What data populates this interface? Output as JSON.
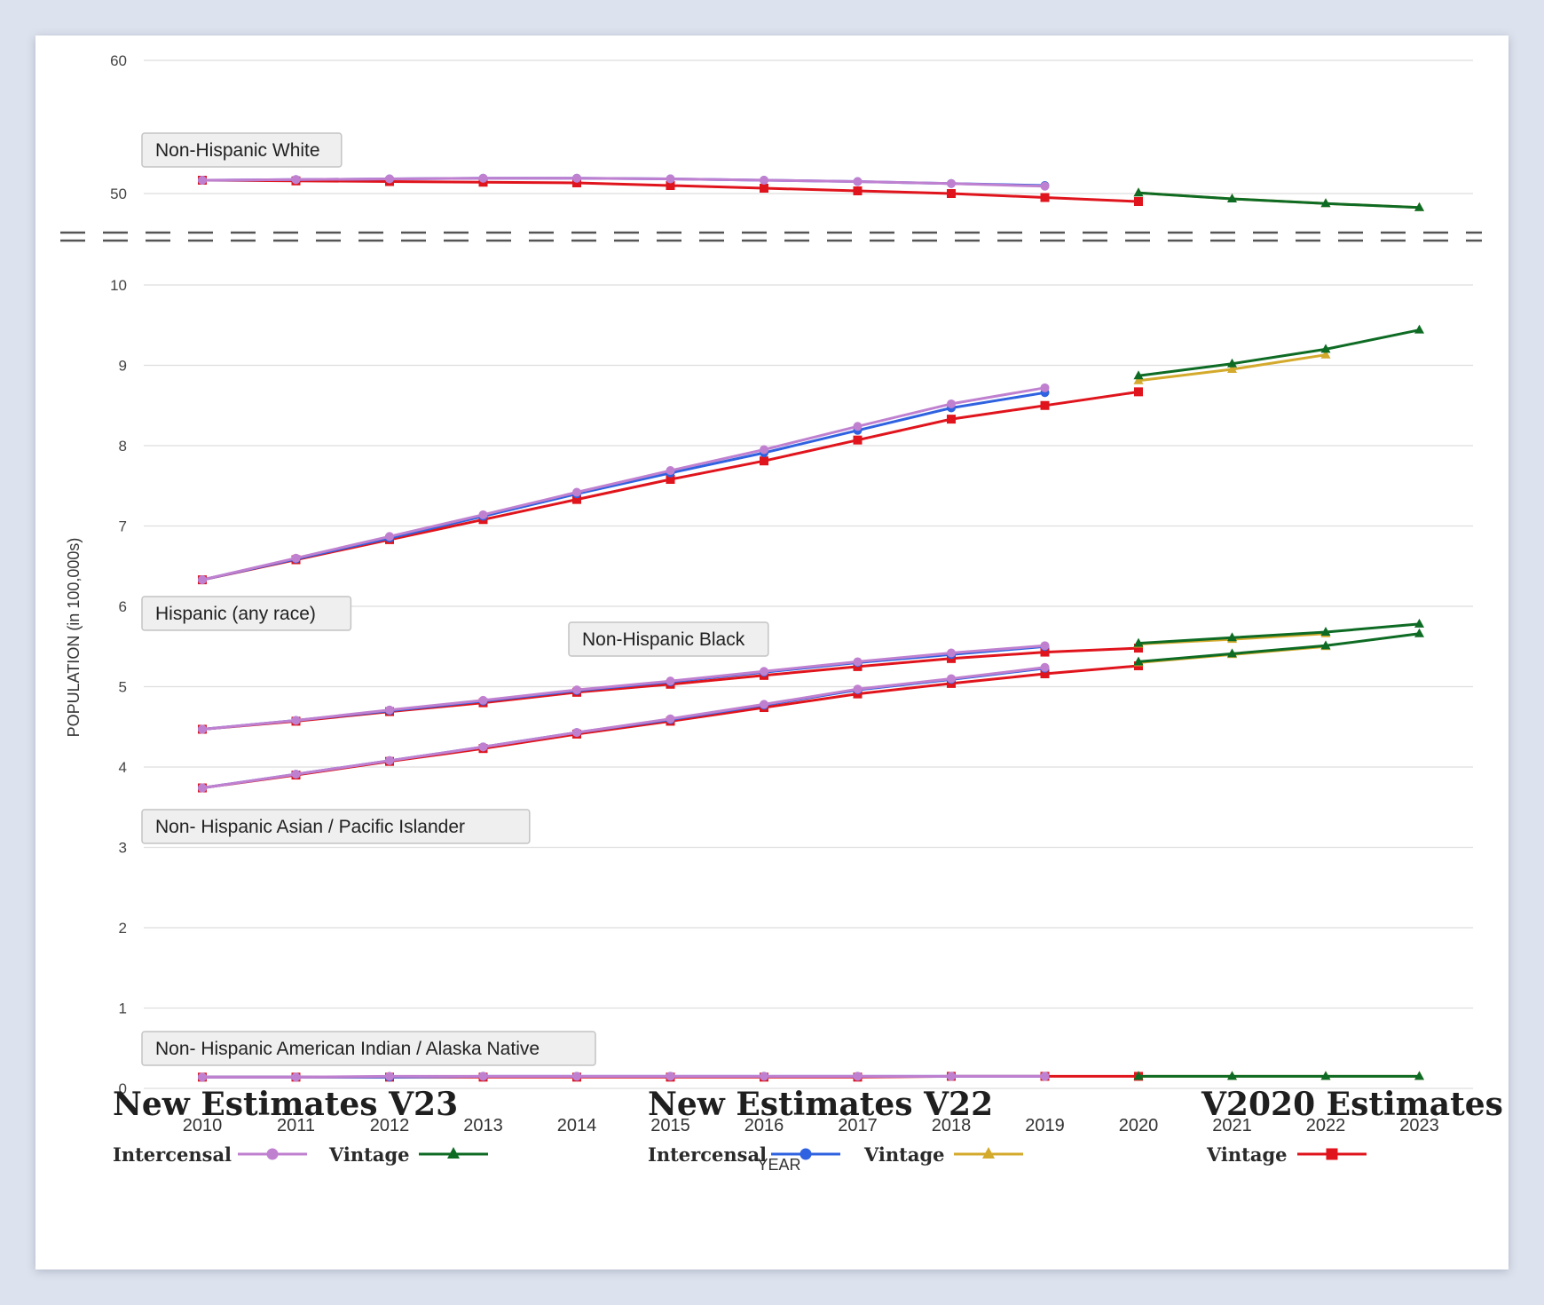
{
  "chart_data": {
    "type": "line",
    "ylabel": "POPULATION (in 100,000s)",
    "xlabel": "YEAR",
    "x": [
      2010,
      2011,
      2012,
      2013,
      2014,
      2015,
      2016,
      2017,
      2018,
      2019,
      2020,
      2021,
      2022,
      2023
    ],
    "x_tick_labels": [
      "2010",
      "2011",
      "2012",
      "2013",
      "2014",
      "2015",
      "2016",
      "2017",
      "2018",
      "2019",
      "2020",
      "2021",
      "2022",
      "2023"
    ],
    "y_ticks_lower": [
      "0",
      "1",
      "2",
      "3",
      "4",
      "5",
      "6",
      "7",
      "8",
      "9",
      "10"
    ],
    "y_ticks_upper": [
      "50",
      "60"
    ],
    "ylim_lower": [
      0,
      10
    ],
    "ylim_upper": [
      48.3,
      60
    ],
    "axis_break": "between 10 and 50",
    "grid": true,
    "group_labels": [
      {
        "text": "Non-Hispanic White"
      },
      {
        "text": "Hispanic (any race)"
      },
      {
        "text": "Non-Hispanic Black"
      },
      {
        "text": "Non- Hispanic Asian / Pacific Islander"
      },
      {
        "text": "Non- Hispanic American Indian / Alaska Native"
      }
    ],
    "series_styles": {
      "v23_intercensal": {
        "color": "#c080d0",
        "marker": "circle"
      },
      "v23_vintage": {
        "color": "#0e6b24",
        "marker": "triangle"
      },
      "v22_intercensal": {
        "color": "#2f62e0",
        "marker": "circle"
      },
      "v22_vintage": {
        "color": "#d4aa2c",
        "marker": "triangle"
      },
      "v2020_vintage": {
        "color": "#e0141c",
        "marker": "square"
      }
    },
    "groups": [
      {
        "group": "Non-Hispanic White",
        "panel": "upper",
        "series": [
          {
            "style": "v2020_vintage",
            "x": [
              2010,
              2011,
              2012,
              2013,
              2014,
              2015,
              2016,
              2017,
              2018,
              2019,
              2020
            ],
            "values": [
              51.0,
              50.95,
              50.9,
              50.85,
              50.8,
              50.6,
              50.4,
              50.2,
              50.0,
              49.7,
              49.4
            ]
          },
          {
            "style": "v22_intercensal",
            "x": [
              2010,
              2011,
              2012,
              2013,
              2014,
              2015,
              2016,
              2017,
              2018,
              2019
            ],
            "values": [
              51.0,
              51.05,
              51.1,
              51.15,
              51.15,
              51.1,
              51.0,
              50.9,
              50.75,
              50.6
            ]
          },
          {
            "style": "v23_intercensal",
            "x": [
              2010,
              2011,
              2012,
              2013,
              2014,
              2015,
              2016,
              2017,
              2018,
              2019
            ],
            "values": [
              51.0,
              51.05,
              51.1,
              51.15,
              51.15,
              51.1,
              51.0,
              50.9,
              50.75,
              50.55
            ]
          },
          {
            "style": "v22_vintage",
            "x": [
              2020,
              2021,
              2022,
              2023
            ],
            "values": [
              50.05,
              49.6,
              49.25,
              48.95
            ]
          },
          {
            "style": "v23_vintage",
            "x": [
              2020,
              2021,
              2022,
              2023
            ],
            "values": [
              50.05,
              49.6,
              49.25,
              48.95
            ]
          }
        ]
      },
      {
        "group": "Hispanic (any race)",
        "panel": "lower",
        "series": [
          {
            "style": "v2020_vintage",
            "x": [
              2010,
              2011,
              2012,
              2013,
              2014,
              2015,
              2016,
              2017,
              2018,
              2019,
              2020
            ],
            "values": [
              6.33,
              6.58,
              6.83,
              7.08,
              7.33,
              7.58,
              7.81,
              8.07,
              8.33,
              8.5,
              8.67
            ]
          },
          {
            "style": "v22_intercensal",
            "x": [
              2010,
              2011,
              2012,
              2013,
              2014,
              2015,
              2016,
              2017,
              2018,
              2019
            ],
            "values": [
              6.33,
              6.59,
              6.85,
              7.12,
              7.4,
              7.66,
              7.91,
              8.19,
              8.47,
              8.66
            ]
          },
          {
            "style": "v23_intercensal",
            "x": [
              2010,
              2011,
              2012,
              2013,
              2014,
              2015,
              2016,
              2017,
              2018,
              2019
            ],
            "values": [
              6.33,
              6.6,
              6.87,
              7.14,
              7.42,
              7.69,
              7.95,
              8.24,
              8.52,
              8.72
            ]
          },
          {
            "style": "v22_vintage",
            "x": [
              2020,
              2021,
              2022
            ],
            "values": [
              8.81,
              8.95,
              9.13
            ]
          },
          {
            "style": "v23_vintage",
            "x": [
              2020,
              2021,
              2022,
              2023
            ],
            "values": [
              8.87,
              9.02,
              9.2,
              9.44
            ]
          }
        ]
      },
      {
        "group": "Non-Hispanic Black",
        "panel": "lower",
        "series": [
          {
            "style": "v2020_vintage",
            "x": [
              2010,
              2011,
              2012,
              2013,
              2014,
              2015,
              2016,
              2017,
              2018,
              2019,
              2020
            ],
            "values": [
              4.47,
              4.57,
              4.69,
              4.8,
              4.93,
              5.03,
              5.14,
              5.25,
              5.35,
              5.43,
              5.48
            ]
          },
          {
            "style": "v22_intercensal",
            "x": [
              2010,
              2011,
              2012,
              2013,
              2014,
              2015,
              2016,
              2017,
              2018,
              2019
            ],
            "values": [
              4.47,
              4.58,
              4.7,
              4.82,
              4.95,
              5.06,
              5.18,
              5.3,
              5.4,
              5.5
            ]
          },
          {
            "style": "v23_intercensal",
            "x": [
              2010,
              2011,
              2012,
              2013,
              2014,
              2015,
              2016,
              2017,
              2018,
              2019
            ],
            "values": [
              4.47,
              4.58,
              4.71,
              4.83,
              4.96,
              5.07,
              5.19,
              5.31,
              5.42,
              5.51
            ]
          },
          {
            "style": "v22_vintage",
            "x": [
              2020,
              2021,
              2022
            ],
            "values": [
              5.53,
              5.59,
              5.66
            ]
          },
          {
            "style": "v23_vintage",
            "x": [
              2020,
              2021,
              2022,
              2023
            ],
            "values": [
              5.54,
              5.61,
              5.68,
              5.78
            ]
          }
        ]
      },
      {
        "group": "Non- Hispanic Asian / Pacific Islander",
        "panel": "lower",
        "series": [
          {
            "style": "v2020_vintage",
            "x": [
              2010,
              2011,
              2012,
              2013,
              2014,
              2015,
              2016,
              2017,
              2018,
              2019,
              2020
            ],
            "values": [
              3.74,
              3.9,
              4.07,
              4.23,
              4.41,
              4.57,
              4.74,
              4.91,
              5.04,
              5.16,
              5.26
            ]
          },
          {
            "style": "v22_intercensal",
            "x": [
              2010,
              2011,
              2012,
              2013,
              2014,
              2015,
              2016,
              2017,
              2018,
              2019
            ],
            "values": [
              3.74,
              3.91,
              4.08,
              4.25,
              4.43,
              4.59,
              4.77,
              4.96,
              5.09,
              5.23
            ]
          },
          {
            "style": "v23_intercensal",
            "x": [
              2010,
              2011,
              2012,
              2013,
              2014,
              2015,
              2016,
              2017,
              2018,
              2019
            ],
            "values": [
              3.74,
              3.91,
              4.08,
              4.25,
              4.43,
              4.6,
              4.78,
              4.97,
              5.1,
              5.24
            ]
          },
          {
            "style": "v22_vintage",
            "x": [
              2020,
              2021,
              2022
            ],
            "values": [
              5.3,
              5.4,
              5.5
            ]
          },
          {
            "style": "v23_vintage",
            "x": [
              2020,
              2021,
              2022,
              2023
            ],
            "values": [
              5.31,
              5.41,
              5.51,
              5.66
            ]
          }
        ]
      },
      {
        "group": "Non- Hispanic American Indian / Alaska Native",
        "panel": "lower",
        "series": [
          {
            "style": "v2020_vintage",
            "x": [
              2010,
              2011,
              2012,
              2013,
              2014,
              2015,
              2016,
              2017,
              2018,
              2019,
              2020
            ],
            "values": [
              0.14,
              0.14,
              0.14,
              0.14,
              0.14,
              0.14,
              0.14,
              0.14,
              0.15,
              0.15,
              0.15
            ]
          },
          {
            "style": "v22_intercensal",
            "x": [
              2010,
              2011,
              2012,
              2013,
              2014,
              2015,
              2016,
              2017,
              2018,
              2019
            ],
            "values": [
              0.14,
              0.14,
              0.14,
              0.15,
              0.15,
              0.15,
              0.15,
              0.15,
              0.15,
              0.15
            ]
          },
          {
            "style": "v23_intercensal",
            "x": [
              2010,
              2011,
              2012,
              2013,
              2014,
              2015,
              2016,
              2017,
              2018,
              2019
            ],
            "values": [
              0.14,
              0.14,
              0.15,
              0.15,
              0.15,
              0.15,
              0.15,
              0.15,
              0.15,
              0.15
            ]
          },
          {
            "style": "v22_vintage",
            "x": [
              2020,
              2021,
              2022,
              2023
            ],
            "values": [
              0.15,
              0.15,
              0.15,
              0.15
            ]
          },
          {
            "style": "v23_vintage",
            "x": [
              2020,
              2021,
              2022,
              2023
            ],
            "values": [
              0.15,
              0.15,
              0.15,
              0.15
            ]
          }
        ]
      }
    ]
  },
  "legend": {
    "v23": {
      "title": "New Estimates V23",
      "intercensal_label": "Intercensal",
      "vintage_label": "Vintage"
    },
    "v22": {
      "title": "New Estimates V22",
      "intercensal_label": "Intercensal",
      "vintage_label": "Vintage"
    },
    "v2020": {
      "title": "V2020 Estimates",
      "vintage_label": "Vintage"
    }
  }
}
